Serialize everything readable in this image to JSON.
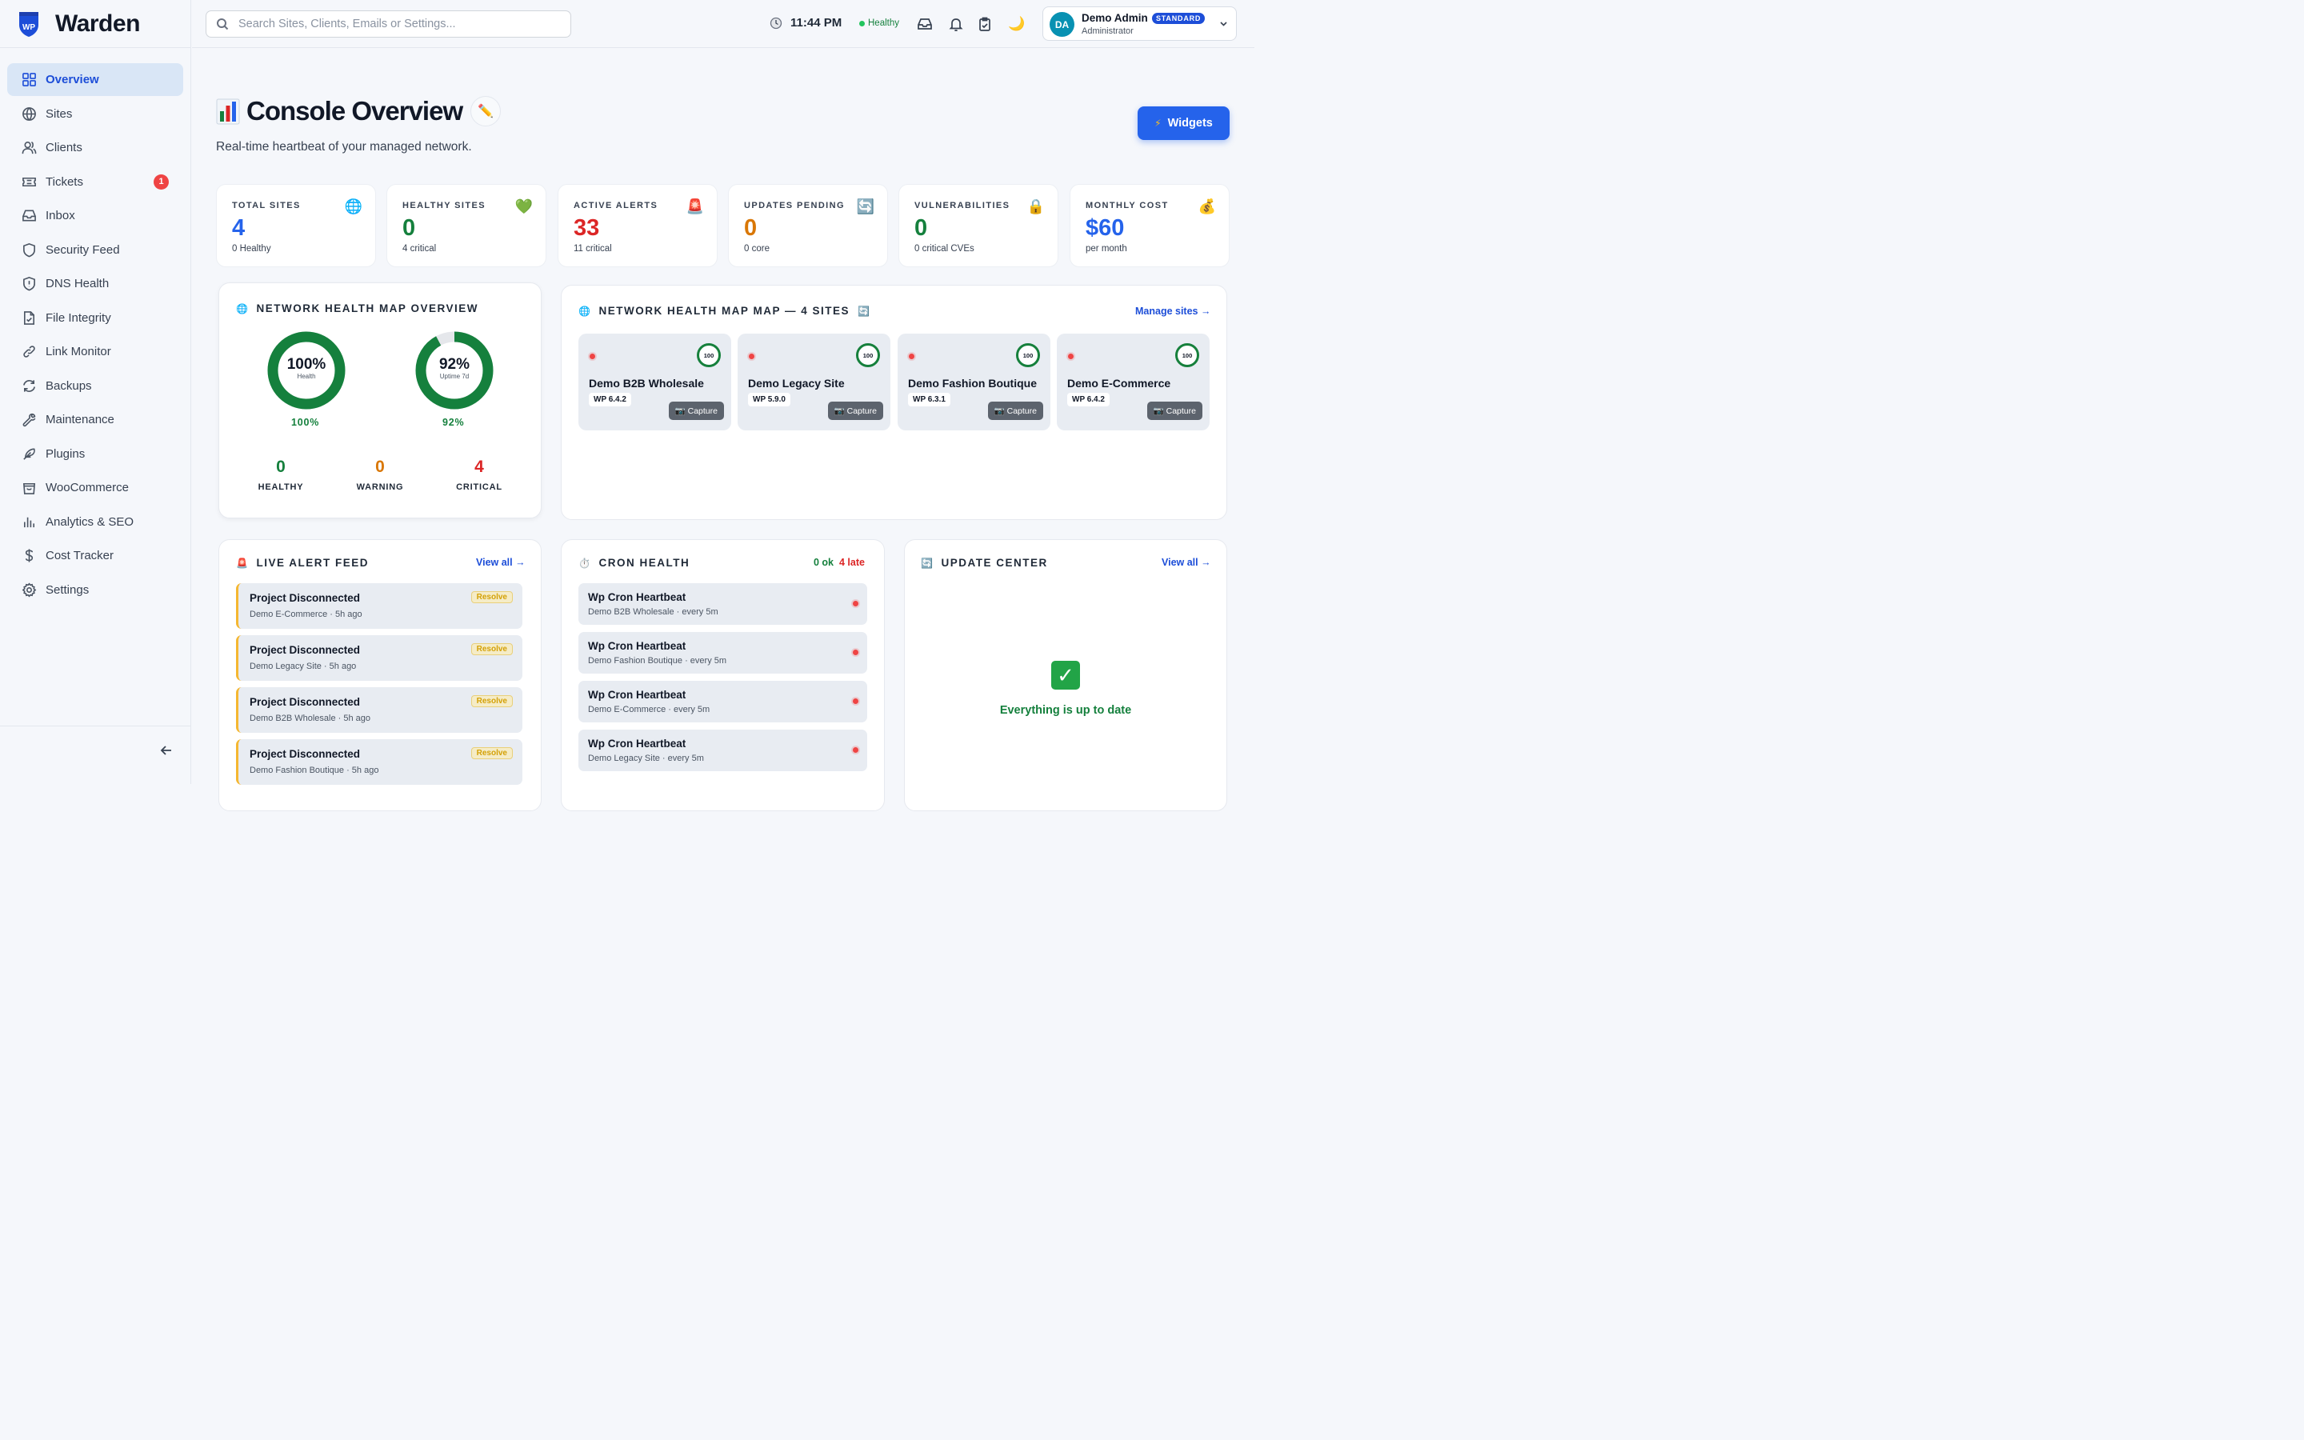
{
  "app": {
    "name": "Warden",
    "logo_text": "WP"
  },
  "sidebar": {
    "items": [
      {
        "label": "Overview",
        "icon": "grid-icon",
        "active": true
      },
      {
        "label": "Sites",
        "icon": "globe-icon"
      },
      {
        "label": "Clients",
        "icon": "users-icon"
      },
      {
        "label": "Tickets",
        "icon": "ticket-icon",
        "badge": "1"
      },
      {
        "label": "Inbox",
        "icon": "inbox-icon"
      },
      {
        "label": "Security Feed",
        "icon": "shield-icon"
      },
      {
        "label": "DNS Health",
        "icon": "shield-alert-icon"
      },
      {
        "label": "File Integrity",
        "icon": "file-check-icon"
      },
      {
        "label": "Link Monitor",
        "icon": "link-icon"
      },
      {
        "label": "Backups",
        "icon": "refresh-icon"
      },
      {
        "label": "Maintenance",
        "icon": "wrench-icon"
      },
      {
        "label": "Plugins",
        "icon": "feather-icon"
      },
      {
        "label": "WooCommerce",
        "icon": "bag-icon"
      },
      {
        "label": "Analytics & SEO",
        "icon": "bar-chart-icon"
      },
      {
        "label": "Cost Tracker",
        "icon": "dollar-icon"
      },
      {
        "label": "Settings",
        "icon": "gear-icon"
      }
    ]
  },
  "topbar": {
    "search_placeholder": "Search Sites, Clients, Emails or Settings...",
    "time": "11:44 PM",
    "status": "Healthy",
    "user": {
      "initials": "DA",
      "name": "Demo Admin",
      "plan": "STANDARD",
      "role": "Administrator"
    }
  },
  "page": {
    "title": "Console Overview",
    "subtitle": "Real-time heartbeat of your managed network.",
    "widgets_label": "Widgets"
  },
  "stats": [
    {
      "label": "TOTAL SITES",
      "value": "4",
      "sub": "0 Healthy",
      "icon": "🌐",
      "color": "#2563eb"
    },
    {
      "label": "HEALTHY SITES",
      "value": "0",
      "sub": "4 critical",
      "icon": "💚",
      "color": "#15803d"
    },
    {
      "label": "ACTIVE ALERTS",
      "value": "33",
      "sub": "11 critical",
      "icon": "🚨",
      "color": "#dc2626"
    },
    {
      "label": "UPDATES PENDING",
      "value": "0",
      "sub": "0 core",
      "icon": "🔄",
      "color": "#d97706"
    },
    {
      "label": "VULNERABILITIES",
      "value": "0",
      "sub": "0 critical CVEs",
      "icon": "🔒",
      "color": "#15803d"
    },
    {
      "label": "MONTHLY COST",
      "value": "$60",
      "sub": "per month",
      "icon": "💰",
      "color": "#2563eb"
    }
  ],
  "health_overview": {
    "title": "NETWORK HEALTH MAP OVERVIEW",
    "health": {
      "percent": 100,
      "text": "100%",
      "label": "Health",
      "caption": "100%"
    },
    "uptime": {
      "percent": 92,
      "text": "92%",
      "label": "Uptime 7d",
      "caption": "92%"
    },
    "counts": [
      {
        "value": "0",
        "label": "HEALTHY",
        "color": "#15803d"
      },
      {
        "value": "0",
        "label": "WARNING",
        "color": "#d97706"
      },
      {
        "value": "4",
        "label": "CRITICAL",
        "color": "#dc2626"
      }
    ]
  },
  "health_map": {
    "title": "NETWORK HEALTH MAP MAP — 4 SITES",
    "manage_link": "Manage sites →",
    "sites": [
      {
        "name": "Demo B2B Wholesale",
        "wp": "WP 6.4.2",
        "score": "100",
        "capture": "📷 Capture"
      },
      {
        "name": "Demo Legacy Site",
        "wp": "WP 5.9.0",
        "score": "100",
        "capture": "📷 Capture"
      },
      {
        "name": "Demo Fashion Boutique",
        "wp": "WP 6.3.1",
        "score": "100",
        "capture": "📷 Capture"
      },
      {
        "name": "Demo E-Commerce",
        "wp": "WP 6.4.2",
        "score": "100",
        "capture": "📷 Capture"
      }
    ]
  },
  "alert_feed": {
    "title": "LIVE ALERT FEED",
    "view_all": "View all →",
    "alerts": [
      {
        "title": "Project Disconnected",
        "sub": "Demo E-Commerce · 5h ago",
        "action": "Resolve"
      },
      {
        "title": "Project Disconnected",
        "sub": "Demo Legacy Site · 5h ago",
        "action": "Resolve"
      },
      {
        "title": "Project Disconnected",
        "sub": "Demo B2B Wholesale · 5h ago",
        "action": "Resolve"
      },
      {
        "title": "Project Disconnected",
        "sub": "Demo Fashion Boutique · 5h ago",
        "action": "Resolve"
      }
    ]
  },
  "cron": {
    "title": "CRON HEALTH",
    "ok": "0 ok",
    "late": "4 late",
    "items": [
      {
        "title": "Wp Cron Heartbeat",
        "sub": "Demo B2B Wholesale · every 5m"
      },
      {
        "title": "Wp Cron Heartbeat",
        "sub": "Demo Fashion Boutique · every 5m"
      },
      {
        "title": "Wp Cron Heartbeat",
        "sub": "Demo E-Commerce · every 5m"
      },
      {
        "title": "Wp Cron Heartbeat",
        "sub": "Demo Legacy Site · every 5m"
      }
    ]
  },
  "updates": {
    "title": "UPDATE CENTER",
    "view_all": "View all →",
    "empty_text": "Everything is up to date"
  }
}
